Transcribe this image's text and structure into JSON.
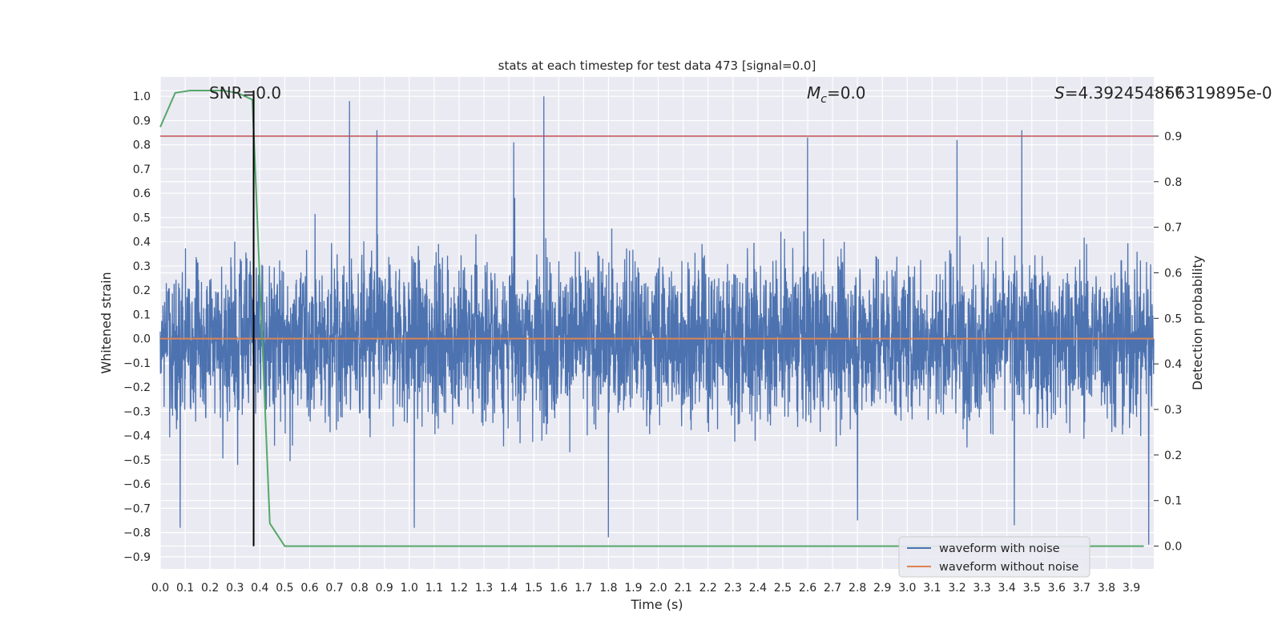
{
  "chart_data": {
    "type": "line",
    "title": "stats at each timestep for test data 473 [signal=0.0]",
    "xlabel": "Time (s)",
    "ylabel": "Whitened strain",
    "ylabel_right": "Detection probability",
    "xlim": [
      0.0,
      3.99
    ],
    "ylim": [
      -0.95,
      1.08
    ],
    "ylim_right": [
      -0.05,
      1.03
    ],
    "x_ticks": [
      "0.0",
      "0.1",
      "0.2",
      "0.3",
      "0.4",
      "0.5",
      "0.6",
      "0.7",
      "0.8",
      "0.9",
      "1.0",
      "1.1",
      "1.2",
      "1.3",
      "1.4",
      "1.5",
      "1.6",
      "1.7",
      "1.8",
      "1.9",
      "2.0",
      "2.1",
      "2.2",
      "2.3",
      "2.4",
      "2.5",
      "2.6",
      "2.7",
      "2.8",
      "2.9",
      "3.0",
      "3.1",
      "3.2",
      "3.3",
      "3.4",
      "3.5",
      "3.6",
      "3.7",
      "3.8",
      "3.9"
    ],
    "y_ticks": [
      "-0.9",
      "-0.8",
      "-0.7",
      "-0.6",
      "-0.5",
      "-0.4",
      "-0.3",
      "-0.2",
      "-0.1",
      "0.0",
      "0.1",
      "0.2",
      "0.3",
      "0.4",
      "0.5",
      "0.6",
      "0.7",
      "0.8",
      "0.9",
      "1.0"
    ],
    "y_ticks_right": [
      "0.0",
      "0.1",
      "0.2",
      "0.3",
      "0.4",
      "0.5",
      "0.6",
      "0.7",
      "0.8",
      "0.9",
      "1.0"
    ],
    "grid": true,
    "legend_position": "lower-right",
    "annotations": {
      "snr": "SNR=0.0",
      "mc_symbol": "M",
      "mc_sub": "c",
      "mc_value": "=0.0",
      "s_symbol": "S",
      "s_value": "=4.392454866319895e-0"
    },
    "threshold_right": 0.9,
    "marker_time": 0.375,
    "series": [
      {
        "name": "waveform with noise",
        "color": "#4c72b0",
        "noise_amplitude": 0.3,
        "samples": 4096,
        "peaks": [
          {
            "x": 0.76,
            "y": 0.98
          },
          {
            "x": 1.54,
            "y": 1.0
          },
          {
            "x": 0.87,
            "y": 0.86
          },
          {
            "x": 3.46,
            "y": 0.86
          },
          {
            "x": 2.6,
            "y": 0.83
          },
          {
            "x": 3.2,
            "y": 0.82
          },
          {
            "x": 1.42,
            "y": 0.81
          },
          {
            "x": 1.8,
            "y": -0.82
          },
          {
            "x": 3.97,
            "y": -0.85
          },
          {
            "x": 0.08,
            "y": -0.78
          },
          {
            "x": 1.02,
            "y": -0.78
          },
          {
            "x": 3.43,
            "y": -0.77
          },
          {
            "x": 2.8,
            "y": -0.75
          }
        ]
      },
      {
        "name": "waveform without noise",
        "color": "#dd8452",
        "x": [
          0.0,
          3.99
        ],
        "y": [
          0.0,
          0.0
        ]
      },
      {
        "name": "detection probability",
        "color": "#55a868",
        "axis": "right",
        "x": [
          0.0,
          0.06,
          0.12,
          0.19,
          0.25,
          0.31,
          0.37,
          0.44,
          0.5,
          0.56,
          3.95
        ],
        "y": [
          0.92,
          0.995,
          1.0,
          1.0,
          1.0,
          0.995,
          0.98,
          0.05,
          0.0,
          0.0,
          0.0
        ]
      }
    ],
    "colors": {
      "background": "#eaeaf2",
      "grid": "#ffffff",
      "threshold": "#c44e52",
      "marker": "#000000"
    }
  }
}
